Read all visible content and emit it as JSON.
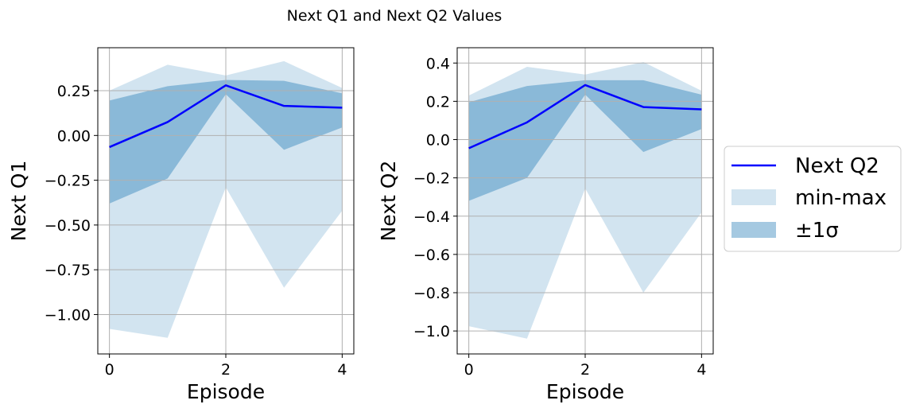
{
  "figure": {
    "suptitle": "Next Q1 and Next Q2 Values"
  },
  "colors": {
    "line": "#0000ff",
    "minmax_fill": "#d2e3ef",
    "std_fill": "#99bfdc",
    "overlap_fill": "#82b1d3",
    "grid": "#b0b0b0"
  },
  "legend": {
    "placement": "center-right",
    "entries": [
      {
        "label": "Next Q2",
        "kind": "line"
      },
      {
        "label": "min-max",
        "kind": "minmax"
      },
      {
        "label": "±1σ",
        "kind": "std"
      }
    ]
  },
  "chart_data": [
    {
      "type": "line",
      "xlabel": "Episode",
      "ylabel": "Next Q1",
      "xlim": [
        -0.2,
        4.2
      ],
      "ylim": [
        -1.22,
        0.49
      ],
      "xticks": [
        0,
        2,
        4
      ],
      "xtick_labels": [
        "0",
        "2",
        "4"
      ],
      "yticks": [
        -1.0,
        -0.75,
        -0.5,
        -0.25,
        0.0,
        0.25
      ],
      "ytick_labels": [
        "−1.00",
        "−0.75",
        "−0.50",
        "−0.25",
        "0.00",
        "0.25"
      ],
      "grid": true,
      "x": [
        0,
        1,
        2,
        3,
        4
      ],
      "mean": [
        -0.065,
        0.075,
        0.28,
        0.165,
        0.155
      ],
      "std_lower": [
        -0.38,
        -0.24,
        0.23,
        -0.08,
        0.045
      ],
      "std_upper": [
        0.195,
        0.275,
        0.31,
        0.305,
        0.235
      ],
      "min": [
        -1.08,
        -1.13,
        -0.29,
        -0.85,
        -0.42
      ],
      "max": [
        0.25,
        0.395,
        0.335,
        0.415,
        0.265
      ]
    },
    {
      "type": "line",
      "xlabel": "Episode",
      "ylabel": "Next Q2",
      "xlim": [
        -0.2,
        4.2
      ],
      "ylim": [
        -1.12,
        0.48
      ],
      "xticks": [
        0,
        2,
        4
      ],
      "xtick_labels": [
        "0",
        "2",
        "4"
      ],
      "yticks": [
        -1.0,
        -0.8,
        -0.6,
        -0.4,
        -0.2,
        0.0,
        0.2,
        0.4
      ],
      "ytick_labels": [
        "−1.0",
        "−0.8",
        "−0.6",
        "−0.4",
        "−0.2",
        "0.0",
        "0.2",
        "0.4"
      ],
      "grid": true,
      "x": [
        0,
        1,
        2,
        3,
        4
      ],
      "mean": [
        -0.045,
        0.09,
        0.285,
        0.17,
        0.158
      ],
      "std_lower": [
        -0.32,
        -0.2,
        0.235,
        -0.065,
        0.055
      ],
      "std_upper": [
        0.195,
        0.28,
        0.31,
        0.31,
        0.235
      ],
      "min": [
        -0.975,
        -1.04,
        -0.255,
        -0.8,
        -0.38
      ],
      "max": [
        0.23,
        0.38,
        0.34,
        0.405,
        0.255
      ]
    }
  ]
}
